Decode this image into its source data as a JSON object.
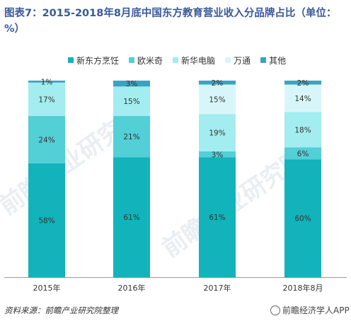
{
  "title": "图表7：2015-2018年8月底中国东方教育营业收入分品牌占比（单位：%）",
  "footer": {
    "source": "资料来源：前瞻产业研究院整理",
    "brand_label": "前瞻经济学人APP",
    "brand_icon": "circle-logo-icon"
  },
  "watermark": {
    "text": "前瞻产业研究院"
  },
  "chart_data": {
    "type": "bar",
    "stacked": true,
    "unit": "%",
    "categories": [
      "2015年",
      "2016年",
      "2017年",
      "2018年8月"
    ],
    "series": [
      {
        "name": "新东方烹饪",
        "color": "#12b3bb",
        "values": [
          58,
          61,
          61,
          60
        ]
      },
      {
        "name": "欧米奇",
        "color": "#53cfd6",
        "values": [
          24,
          21,
          3,
          6
        ]
      },
      {
        "name": "新华电脑",
        "color": "#a3ecf0",
        "values": [
          17,
          15,
          19,
          18
        ]
      },
      {
        "name": "万通",
        "color": "#d8f6f9",
        "values": [
          0,
          0,
          15,
          14
        ]
      },
      {
        "name": "其他",
        "color": "#3aa3c0",
        "values": [
          1,
          3,
          2,
          2
        ]
      }
    ],
    "labels": [
      [
        "58%",
        "24%",
        "17%",
        "",
        "1%"
      ],
      [
        "61%",
        "21%",
        "15%",
        "",
        "3%"
      ],
      [
        "61%",
        "3%",
        "19%",
        "15%",
        "2%"
      ],
      [
        "60%",
        "6%",
        "18%",
        "14%",
        "2%"
      ]
    ],
    "ylim": [
      0,
      100
    ],
    "legend_position": "top-center",
    "grid": false
  }
}
